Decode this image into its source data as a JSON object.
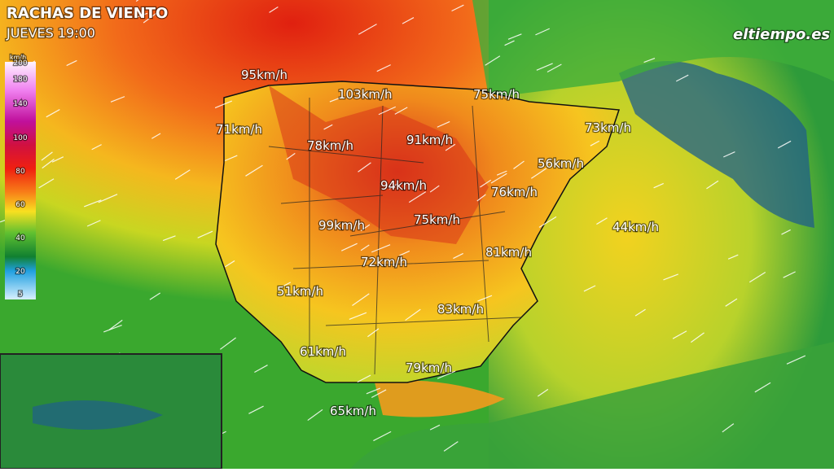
{
  "header": {
    "title": "RACHAS DE VIENTO",
    "subtitle": "JUEVES 19:00",
    "logo": "eltiempo.es"
  },
  "legend": {
    "unit": "km/h",
    "ticks": [
      "200",
      "180",
      "140",
      "100",
      "80",
      "60",
      "40",
      "20",
      "5"
    ]
  },
  "labels": [
    "95km/h",
    "103km/h",
    "75km/h",
    "71km/h",
    "78km/h",
    "91km/h",
    "73km/h",
    "56km/h",
    "94km/h",
    "76km/h",
    "75km/h",
    "99km/h",
    "44km/h",
    "81km/h",
    "72km/h",
    "51km/h",
    "83km/h",
    "61km/h",
    "79km/h",
    "65km/h"
  ]
}
